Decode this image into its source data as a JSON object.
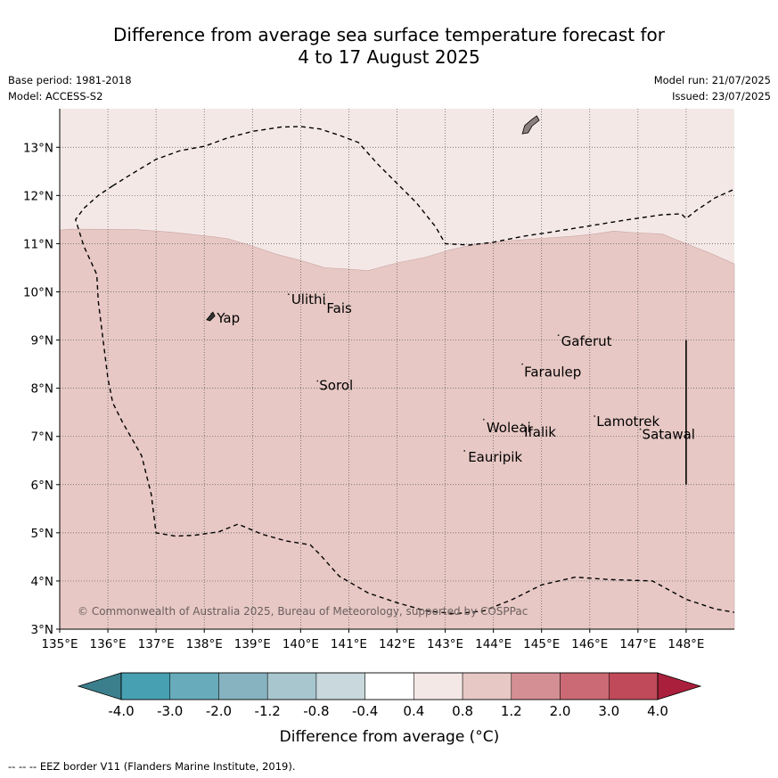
{
  "title": {
    "line1": "Difference from average sea surface temperature forecast for",
    "line2": "4 to 17 August 2025"
  },
  "meta": {
    "base_period": "Base period: 1981-2018",
    "model": "Model: ACCESS-S2",
    "model_run": "Model run: 21/07/2025",
    "issued": "Issued: 23/07/2025"
  },
  "map": {
    "lon_range": [
      135,
      149
    ],
    "lat_range": [
      3,
      13.8
    ],
    "lon_ticks": [
      {
        "value": 135,
        "label": "135°E"
      },
      {
        "value": 136,
        "label": "136°E"
      },
      {
        "value": 137,
        "label": "137°E"
      },
      {
        "value": 138,
        "label": "138°E"
      },
      {
        "value": 139,
        "label": "139°E"
      },
      {
        "value": 140,
        "label": "140°E"
      },
      {
        "value": 141,
        "label": "141°E"
      },
      {
        "value": 142,
        "label": "142°E"
      },
      {
        "value": 143,
        "label": "143°E"
      },
      {
        "value": 144,
        "label": "144°E"
      },
      {
        "value": 145,
        "label": "145°E"
      },
      {
        "value": 146,
        "label": "146°E"
      },
      {
        "value": 147,
        "label": "147°E"
      },
      {
        "value": 148,
        "label": "148°E"
      }
    ],
    "lat_ticks": [
      {
        "value": 3,
        "label": "3°N"
      },
      {
        "value": 4,
        "label": "4°N"
      },
      {
        "value": 5,
        "label": "5°N"
      },
      {
        "value": 6,
        "label": "6°N"
      },
      {
        "value": 7,
        "label": "7°N"
      },
      {
        "value": 8,
        "label": "8°N"
      },
      {
        "value": 9,
        "label": "9°N"
      },
      {
        "value": 10,
        "label": "10°N"
      },
      {
        "value": 11,
        "label": "11°N"
      },
      {
        "value": 12,
        "label": "12°N"
      },
      {
        "value": 13,
        "label": "13°N"
      }
    ],
    "anomaly_fields": [
      {
        "range": "0.4 to 0.8",
        "color": "#f4e8e7"
      },
      {
        "range": "0.8 to 1.2",
        "color": "#e7c8c4"
      }
    ],
    "boundary_0_8": [
      [
        135,
        11.28
      ],
      [
        135.2,
        11.3
      ],
      [
        135.6,
        11.3
      ],
      [
        136.6,
        11.29
      ],
      [
        137.3,
        11.24
      ],
      [
        138.2,
        11.14
      ],
      [
        138.5,
        11.1
      ],
      [
        139.0,
        10.95
      ],
      [
        139.5,
        10.78
      ],
      [
        140.0,
        10.65
      ],
      [
        140.5,
        10.5
      ],
      [
        141.0,
        10.47
      ],
      [
        141.4,
        10.44
      ],
      [
        142.0,
        10.6
      ],
      [
        142.6,
        10.72
      ],
      [
        143.1,
        10.87
      ],
      [
        143.6,
        10.98
      ],
      [
        144.3,
        11.06
      ],
      [
        145.0,
        11.11
      ],
      [
        145.6,
        11.15
      ],
      [
        146.1,
        11.2
      ],
      [
        146.5,
        11.26
      ],
      [
        146.9,
        11.23
      ],
      [
        147.5,
        11.2
      ],
      [
        148.0,
        11.0
      ],
      [
        148.5,
        10.8
      ],
      [
        149.0,
        10.58
      ]
    ],
    "eez_segments": [
      [
        [
          136.1,
          12.2
        ],
        [
          135.8,
          12.0
        ],
        [
          135.5,
          11.73
        ],
        [
          135.33,
          11.5
        ],
        [
          135.5,
          10.95
        ],
        [
          135.77,
          10.36
        ],
        [
          135.8,
          9.8
        ],
        [
          135.9,
          9.0
        ],
        [
          136.0,
          8.2
        ],
        [
          136.1,
          7.7
        ],
        [
          136.3,
          7.3
        ],
        [
          136.7,
          6.6
        ],
        [
          136.9,
          5.8
        ],
        [
          137.0,
          5.0
        ],
        [
          137.4,
          4.93
        ],
        [
          137.8,
          4.95
        ],
        [
          138.3,
          5.02
        ],
        [
          138.7,
          5.18
        ],
        [
          139.2,
          4.97
        ],
        [
          139.7,
          4.83
        ],
        [
          140.2,
          4.75
        ],
        [
          140.4,
          4.55
        ],
        [
          140.8,
          4.1
        ],
        [
          141.4,
          3.75
        ],
        [
          142.0,
          3.55
        ],
        [
          142.6,
          3.38
        ],
        [
          143.2,
          3.32
        ],
        [
          143.8,
          3.38
        ],
        [
          144.4,
          3.62
        ],
        [
          145.0,
          3.92
        ],
        [
          145.7,
          4.08
        ],
        [
          146.4,
          4.03
        ],
        [
          147.3,
          4.0
        ],
        [
          148.0,
          3.62
        ],
        [
          148.6,
          3.42
        ],
        [
          149.0,
          3.35
        ]
      ],
      [
        [
          136.1,
          12.2
        ],
        [
          136.5,
          12.45
        ],
        [
          137.0,
          12.75
        ],
        [
          137.5,
          12.93
        ],
        [
          138.0,
          13.02
        ],
        [
          138.5,
          13.2
        ],
        [
          139.0,
          13.33
        ],
        [
          139.6,
          13.42
        ],
        [
          140.0,
          13.43
        ],
        [
          140.4,
          13.38
        ],
        [
          140.8,
          13.25
        ],
        [
          141.2,
          13.1
        ],
        [
          141.6,
          12.65
        ],
        [
          142.0,
          12.25
        ],
        [
          142.4,
          11.85
        ],
        [
          142.8,
          11.35
        ],
        [
          143.0,
          11.0
        ],
        [
          143.5,
          10.97
        ],
        [
          144.0,
          11.03
        ],
        [
          144.6,
          11.15
        ],
        [
          145.2,
          11.24
        ],
        [
          146.0,
          11.37
        ],
        [
          146.8,
          11.5
        ],
        [
          147.5,
          11.6
        ],
        [
          147.9,
          11.62
        ],
        [
          148.0,
          11.52
        ],
        [
          148.2,
          11.68
        ],
        [
          148.6,
          11.95
        ],
        [
          149.0,
          12.13
        ]
      ],
      [
        [
          148.0,
          9.0
        ],
        [
          148.0,
          6.0
        ]
      ]
    ],
    "islands": [
      {
        "name": "Yap",
        "label_offset": [
          6,
          5
        ]
      },
      {
        "name": "Ulithi",
        "label_offset": [
          3,
          6
        ]
      },
      {
        "name": "Fais",
        "label_offset": [
          2,
          5
        ]
      },
      {
        "name": "Sorol",
        "label_offset": [
          2,
          5
        ]
      },
      {
        "name": "Gaferut",
        "label_offset": [
          3,
          7
        ]
      },
      {
        "name": "Faraulep",
        "label_offset": [
          2,
          9
        ]
      },
      {
        "name": "Woleai",
        "label_offset": [
          3,
          9
        ]
      },
      {
        "name": "Ifalik",
        "label_offset": [
          2,
          9
        ]
      },
      {
        "name": "Eauripik",
        "label_offset": [
          4,
          7
        ]
      },
      {
        "name": "Lamotrek",
        "label_offset": [
          2,
          6
        ]
      },
      {
        "name": "Satawal",
        "label_offset": [
          2,
          6
        ]
      }
    ],
    "island_points": [
      [
        138.15,
        9.55
      ],
      [
        139.75,
        9.95
      ],
      [
        140.5,
        9.75
      ],
      [
        140.35,
        8.15
      ],
      [
        145.35,
        9.1
      ],
      [
        144.6,
        8.5
      ],
      [
        143.8,
        7.35
      ],
      [
        144.6,
        7.25
      ],
      [
        143.4,
        6.7
      ],
      [
        146.1,
        7.42
      ],
      [
        147.05,
        7.15
      ]
    ],
    "guam": [
      [
        144.6,
        13.28
      ],
      [
        144.65,
        13.45
      ],
      [
        144.8,
        13.58
      ],
      [
        144.9,
        13.65
      ],
      [
        144.95,
        13.56
      ],
      [
        144.8,
        13.44
      ],
      [
        144.72,
        13.3
      ]
    ],
    "yap_main": [
      [
        138.05,
        9.42
      ],
      [
        138.18,
        9.58
      ],
      [
        138.22,
        9.5
      ],
      [
        138.12,
        9.4
      ]
    ],
    "copyright": "© Commonwealth of Australia 2025, Bureau of Meteorology, supported by COSPPac"
  },
  "legend": {
    "label": "Difference from average (°C)",
    "bins": [
      {
        "color": "#3b7f8c"
      },
      {
        "color": "#47a0b2"
      },
      {
        "color": "#68abbb"
      },
      {
        "color": "#87b3c1"
      },
      {
        "color": "#a8c6cd"
      },
      {
        "color": "#c8d8dc"
      },
      {
        "color": "#ffffff"
      },
      {
        "color": "#f4e8e7"
      },
      {
        "color": "#e7c8c4"
      },
      {
        "color": "#d48f94"
      },
      {
        "color": "#cb6a74"
      },
      {
        "color": "#c04a59"
      },
      {
        "color": "#aa1f3c"
      }
    ],
    "tick_labels": [
      "-4.0",
      "-3.0",
      "-2.0",
      "-1.2",
      "-0.8",
      "-0.4",
      "0.4",
      "0.8",
      "1.2",
      "2.0",
      "3.0",
      "4.0"
    ]
  },
  "footnote": "--  --  -- EEZ border V11 (Flanders Marine Institute, 2019)."
}
